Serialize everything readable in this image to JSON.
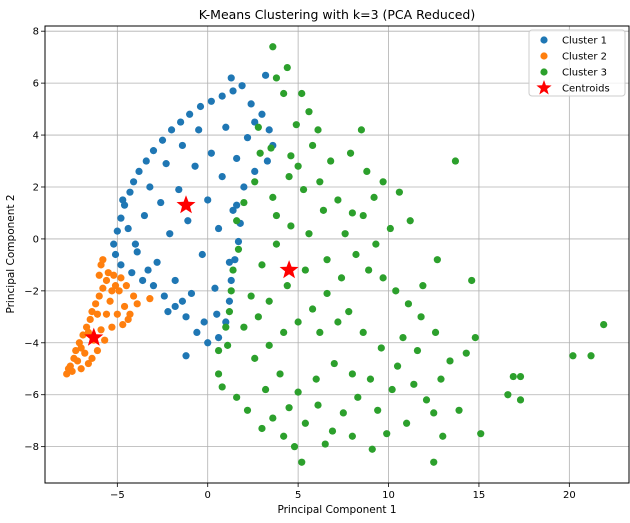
{
  "chart_data": {
    "type": "scatter",
    "title": "K-Means Clustering with k=3 (PCA Reduced)",
    "xlabel": "Principal Component 1",
    "ylabel": "Principal Component 2",
    "xlim": [
      -9,
      23.3
    ],
    "ylim": [
      -9.4,
      8.2
    ],
    "xticks": [
      -5,
      0,
      5,
      10,
      15,
      20
    ],
    "yticks": [
      -8,
      -6,
      -4,
      -2,
      0,
      2,
      4,
      6,
      8
    ],
    "grid": true,
    "legend_position": "top-right",
    "colors": {
      "cluster1": "#1f77b4",
      "cluster2": "#ff7f0e",
      "cluster3": "#2ca02c",
      "centroids": "#ff0000"
    },
    "series": [
      {
        "name": "Cluster 1",
        "color": "#1f77b4",
        "points": [
          [
            -5.2,
            -0.2
          ],
          [
            -5.0,
            0.3
          ],
          [
            -4.8,
            0.8
          ],
          [
            -4.6,
            1.3
          ],
          [
            -4.3,
            1.8
          ],
          [
            -4.1,
            2.2
          ],
          [
            -3.8,
            2.6
          ],
          [
            -3.4,
            3.0
          ],
          [
            -3.0,
            3.4
          ],
          [
            -2.5,
            3.8
          ],
          [
            -2.0,
            4.2
          ],
          [
            -1.5,
            4.5
          ],
          [
            -1.0,
            4.8
          ],
          [
            -0.4,
            5.1
          ],
          [
            0.2,
            5.3
          ],
          [
            0.8,
            5.5
          ],
          [
            1.4,
            5.7
          ],
          [
            1.9,
            5.9
          ],
          [
            1.3,
            6.2
          ],
          [
            3.2,
            6.3
          ],
          [
            2.4,
            5.2
          ],
          [
            3.0,
            4.8
          ],
          [
            3.4,
            4.2
          ],
          [
            3.6,
            3.6
          ],
          [
            3.3,
            3.0
          ],
          [
            2.6,
            2.6
          ],
          [
            2.0,
            2.0
          ],
          [
            1.6,
            1.3
          ],
          [
            1.8,
            0.6
          ],
          [
            1.7,
            -0.1
          ],
          [
            1.5,
            -0.8
          ],
          [
            1.3,
            -1.6
          ],
          [
            1.2,
            -2.4
          ],
          [
            1.0,
            -3.2
          ],
          [
            0.6,
            -3.8
          ],
          [
            0.0,
            -4.0
          ],
          [
            -0.6,
            -3.6
          ],
          [
            -1.2,
            -3.0
          ],
          [
            -1.8,
            -2.6
          ],
          [
            -2.4,
            -2.2
          ],
          [
            -3.0,
            -1.8
          ],
          [
            -3.6,
            -1.6
          ],
          [
            -4.2,
            -1.3
          ],
          [
            -4.8,
            -1.0
          ],
          [
            -5.1,
            -0.6
          ],
          [
            -1.2,
            -4.5
          ],
          [
            -4.7,
            1.5
          ],
          [
            -4.4,
            0.4
          ],
          [
            -3.9,
            -0.5
          ],
          [
            -3.5,
            0.9
          ],
          [
            -3.2,
            2.0
          ],
          [
            -2.8,
            -0.9
          ],
          [
            -2.6,
            1.4
          ],
          [
            -2.3,
            2.9
          ],
          [
            -2.1,
            0.2
          ],
          [
            -1.8,
            -1.6
          ],
          [
            -1.6,
            1.9
          ],
          [
            -1.4,
            3.6
          ],
          [
            -1.1,
            0.7
          ],
          [
            -0.9,
            -2.1
          ],
          [
            -0.7,
            2.8
          ],
          [
            -0.5,
            4.2
          ],
          [
            -0.3,
            -0.6
          ],
          [
            0.0,
            1.5
          ],
          [
            0.2,
            3.3
          ],
          [
            0.4,
            -1.9
          ],
          [
            0.6,
            0.4
          ],
          [
            0.8,
            2.4
          ],
          [
            1.0,
            4.3
          ],
          [
            1.2,
            -0.9
          ],
          [
            1.4,
            1.1
          ],
          [
            1.6,
            3.1
          ],
          [
            2.2,
            3.9
          ],
          [
            2.6,
            4.5
          ],
          [
            -1.4,
            -2.4
          ],
          [
            -2.2,
            -2.8
          ],
          [
            -0.2,
            -3.2
          ],
          [
            0.5,
            -2.9
          ],
          [
            -3.3,
            -1.2
          ],
          [
            -4.0,
            -0.2
          ]
        ]
      },
      {
        "name": "Cluster 2",
        "color": "#ff7f0e",
        "points": [
          [
            -7.8,
            -5.2
          ],
          [
            -7.6,
            -4.9
          ],
          [
            -7.4,
            -4.6
          ],
          [
            -7.3,
            -4.3
          ],
          [
            -7.1,
            -4.0
          ],
          [
            -6.9,
            -3.7
          ],
          [
            -6.7,
            -3.4
          ],
          [
            -6.5,
            -3.1
          ],
          [
            -6.4,
            -2.8
          ],
          [
            -6.2,
            -2.5
          ],
          [
            -6.0,
            -2.2
          ],
          [
            -5.8,
            -1.9
          ],
          [
            -5.6,
            -1.6
          ],
          [
            -5.5,
            -1.3
          ],
          [
            -5.9,
            -1.0
          ],
          [
            -5.8,
            -0.8
          ],
          [
            -5.2,
            -1.4
          ],
          [
            -4.9,
            -2.0
          ],
          [
            -4.6,
            -2.6
          ],
          [
            -4.3,
            -2.9
          ],
          [
            -4.1,
            -2.2
          ],
          [
            -4.5,
            -1.8
          ],
          [
            -5.0,
            -2.9
          ],
          [
            -5.3,
            -3.4
          ],
          [
            -5.7,
            -3.9
          ],
          [
            -6.1,
            -4.3
          ],
          [
            -6.6,
            -4.8
          ],
          [
            -7.0,
            -5.0
          ],
          [
            -7.5,
            -5.1
          ],
          [
            -7.2,
            -4.7
          ],
          [
            -6.8,
            -4.4
          ],
          [
            -6.3,
            -3.9
          ],
          [
            -5.9,
            -3.5
          ],
          [
            -5.6,
            -2.9
          ],
          [
            -5.4,
            -2.4
          ],
          [
            -6.1,
            -2.9
          ],
          [
            -6.6,
            -3.6
          ],
          [
            -7.0,
            -4.2
          ],
          [
            -5.1,
            -1.8
          ],
          [
            -4.8,
            -1.5
          ],
          [
            -4.4,
            -3.1
          ],
          [
            -3.9,
            -2.5
          ],
          [
            -3.2,
            -2.3
          ],
          [
            -4.7,
            -3.3
          ],
          [
            -6.4,
            -4.6
          ],
          [
            -7.7,
            -5.0
          ],
          [
            -6.0,
            -1.4
          ],
          [
            -5.3,
            -2.0
          ]
        ]
      },
      {
        "name": "Cluster 3",
        "color": "#2ca02c",
        "points": [
          [
            3.6,
            7.4
          ],
          [
            4.4,
            6.6
          ],
          [
            4.2,
            5.6
          ],
          [
            5.2,
            5.6
          ],
          [
            3.8,
            6.2
          ],
          [
            5.6,
            4.9
          ],
          [
            4.9,
            4.4
          ],
          [
            6.1,
            4.2
          ],
          [
            8.5,
            4.2
          ],
          [
            2.8,
            4.3
          ],
          [
            3.5,
            3.5
          ],
          [
            4.6,
            3.2
          ],
          [
            5.8,
            3.6
          ],
          [
            6.8,
            3.0
          ],
          [
            7.9,
            3.3
          ],
          [
            8.8,
            2.6
          ],
          [
            9.7,
            2.2
          ],
          [
            10.6,
            1.8
          ],
          [
            11.2,
            0.7
          ],
          [
            13.7,
            3.0
          ],
          [
            9.2,
            1.6
          ],
          [
            8.6,
            0.9
          ],
          [
            10.1,
            0.4
          ],
          [
            9.3,
            -0.2
          ],
          [
            7.6,
            0.2
          ],
          [
            6.4,
            1.1
          ],
          [
            5.3,
            1.9
          ],
          [
            4.5,
            2.4
          ],
          [
            3.6,
            1.6
          ],
          [
            2.6,
            2.2
          ],
          [
            2.0,
            1.4
          ],
          [
            1.6,
            0.7
          ],
          [
            1.7,
            -0.4
          ],
          [
            1.4,
            -1.2
          ],
          [
            1.3,
            -2.0
          ],
          [
            1.2,
            -2.8
          ],
          [
            1.0,
            -3.4
          ],
          [
            1.1,
            -4.1
          ],
          [
            0.6,
            -4.3
          ],
          [
            0.6,
            -5.2
          ],
          [
            0.8,
            -5.7
          ],
          [
            1.6,
            -6.1
          ],
          [
            2.2,
            -6.6
          ],
          [
            3.0,
            -7.3
          ],
          [
            3.6,
            -6.9
          ],
          [
            4.2,
            -7.6
          ],
          [
            4.8,
            -8.0
          ],
          [
            5.4,
            -7.1
          ],
          [
            5.2,
            -8.6
          ],
          [
            6.1,
            -6.4
          ],
          [
            6.9,
            -7.4
          ],
          [
            7.5,
            -6.7
          ],
          [
            8.3,
            -6.1
          ],
          [
            9.4,
            -6.6
          ],
          [
            9.9,
            -7.5
          ],
          [
            10.2,
            -5.8
          ],
          [
            9.1,
            -8.1
          ],
          [
            11.4,
            -5.6
          ],
          [
            12.1,
            -6.2
          ],
          [
            12.5,
            -8.6
          ],
          [
            13.0,
            -7.6
          ],
          [
            13.9,
            -6.6
          ],
          [
            13.4,
            -4.7
          ],
          [
            14.3,
            -4.4
          ],
          [
            14.8,
            -3.8
          ],
          [
            15.1,
            -7.5
          ],
          [
            16.6,
            -6.0
          ],
          [
            17.3,
            -6.2
          ],
          [
            16.9,
            -5.3
          ],
          [
            17.3,
            -5.3
          ],
          [
            20.2,
            -4.5
          ],
          [
            21.2,
            -4.5
          ],
          [
            21.9,
            -3.3
          ],
          [
            12.6,
            -3.6
          ],
          [
            11.8,
            -3.0
          ],
          [
            11.1,
            -2.5
          ],
          [
            10.4,
            -2.0
          ],
          [
            9.7,
            -1.5
          ],
          [
            8.9,
            -1.2
          ],
          [
            8.2,
            -0.6
          ],
          [
            7.4,
            -1.5
          ],
          [
            6.6,
            -2.1
          ],
          [
            5.8,
            -2.7
          ],
          [
            5.0,
            -3.2
          ],
          [
            4.2,
            -3.6
          ],
          [
            3.4,
            -4.1
          ],
          [
            2.6,
            -4.6
          ],
          [
            2.0,
            -3.4
          ],
          [
            2.4,
            -2.2
          ],
          [
            3.0,
            -1.0
          ],
          [
            3.8,
            -0.2
          ],
          [
            4.6,
            0.5
          ],
          [
            5.6,
            0.2
          ],
          [
            6.6,
            -0.8
          ],
          [
            7.8,
            -2.8
          ],
          [
            8.6,
            -3.6
          ],
          [
            9.6,
            -4.2
          ],
          [
            10.5,
            -4.9
          ],
          [
            11.6,
            -4.3
          ],
          [
            12.9,
            -5.4
          ],
          [
            7.0,
            -4.8
          ],
          [
            6.0,
            -5.4
          ],
          [
            5.0,
            -5.9
          ],
          [
            4.0,
            -5.2
          ],
          [
            3.2,
            -5.8
          ],
          [
            2.8,
            -3.0
          ],
          [
            3.4,
            -2.4
          ],
          [
            4.4,
            -1.8
          ],
          [
            5.4,
            -1.2
          ],
          [
            6.2,
            -3.6
          ],
          [
            7.2,
            -3.2
          ],
          [
            8.0,
            -5.2
          ],
          [
            9.0,
            -5.4
          ],
          [
            10.8,
            -3.8
          ],
          [
            11.9,
            -1.8
          ],
          [
            12.7,
            -0.8
          ],
          [
            14.6,
            -1.6
          ],
          [
            12.5,
            -6.7
          ],
          [
            11.0,
            -7.1
          ],
          [
            8.0,
            -7.6
          ],
          [
            6.5,
            -7.9
          ],
          [
            4.5,
            -6.5
          ],
          [
            3.8,
            0.9
          ],
          [
            2.9,
            3.3
          ],
          [
            5.0,
            2.8
          ],
          [
            6.2,
            2.2
          ],
          [
            7.2,
            1.5
          ],
          [
            8.0,
            1.0
          ]
        ]
      },
      {
        "name": "Centroids",
        "color": "#ff0000",
        "marker": "star",
        "points": [
          [
            -1.2,
            1.3
          ],
          [
            -6.3,
            -3.8
          ],
          [
            4.5,
            -1.2
          ]
        ]
      }
    ]
  }
}
